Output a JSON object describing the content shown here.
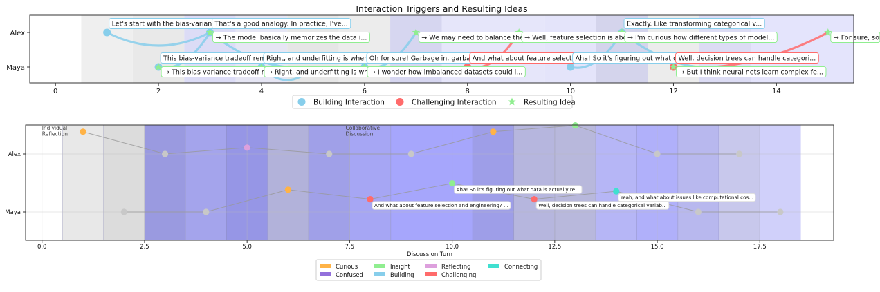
{
  "chart_data": [
    {
      "type": "scatter",
      "title": "Interaction Triggers and Resulting Ideas",
      "xlim": [
        -0.5,
        15.5
      ],
      "x_ticks": [
        0,
        2,
        4,
        6,
        8,
        10,
        12,
        14
      ],
      "y_categories": [
        "Alex",
        "Maya"
      ],
      "grid": false,
      "legend": {
        "placement": "bottom-center",
        "entries": [
          {
            "label": "Building Interaction",
            "color": "#87CEEB",
            "marker": "circle"
          },
          {
            "label": "Challenging Interaction",
            "color": "#FF6B6B",
            "marker": "circle"
          },
          {
            "label": "Resulting Idea",
            "color": "#90EE90",
            "marker": "star"
          }
        ]
      },
      "bands": [
        {
          "x0": 0.5,
          "x1": 1.5,
          "color": "#efefef"
        },
        {
          "x0": 1.5,
          "x1": 2.5,
          "color": "#e9e9e9"
        },
        {
          "x0": 2.5,
          "x1": 3.5,
          "color": "#dcdcf6"
        },
        {
          "x0": 3.5,
          "x1": 4.5,
          "color": "#e6e6f4"
        },
        {
          "x0": 4.5,
          "x1": 5.5,
          "color": "#e6e6e6"
        },
        {
          "x0": 5.5,
          "x1": 6.5,
          "color": "#ececec"
        },
        {
          "x0": 6.5,
          "x1": 7.5,
          "color": "#d6d6f0"
        },
        {
          "x0": 7.5,
          "x1": 8.5,
          "color": "#e6e6fa"
        },
        {
          "x0": 8.5,
          "x1": 9.5,
          "color": "#e6e6fa"
        },
        {
          "x0": 9.5,
          "x1": 10.5,
          "color": "#e4e4fa"
        },
        {
          "x0": 10.5,
          "x1": 11.5,
          "color": "#d4d4ec"
        },
        {
          "x0": 11.5,
          "x1": 12.5,
          "color": "#ececec"
        },
        {
          "x0": 12.5,
          "x1": 13.5,
          "color": "#dcdcf4"
        },
        {
          "x0": 13.5,
          "x1": 15.5,
          "color": "#e4e4fc"
        }
      ],
      "interactions": [
        {
          "x": 1,
          "speaker": "Alex",
          "kind": "building",
          "target_x": 3,
          "target_speaker": "Alex",
          "text": "Let's start with the bias-variance tr..."
        },
        {
          "x": 2,
          "speaker": "Maya",
          "kind": "building",
          "target_x": 3,
          "target_speaker": "Alex",
          "text": "This bias-variance tradeoff remi..."
        },
        {
          "x": 3,
          "speaker": "Alex",
          "kind": "building",
          "target_x": 5,
          "target_speaker": "Maya",
          "text": "That's a good analogy. In practice, I've..."
        },
        {
          "x": 4,
          "speaker": "Maya",
          "kind": "building",
          "target_x": 5,
          "target_speaker": "Maya",
          "text": "Right, and underfitting is when the..."
        },
        {
          "x": 6,
          "speaker": "Maya",
          "kind": "building",
          "target_x": 7,
          "target_speaker": "Alex",
          "text": "Oh for sure! Garbage in, garbage..."
        },
        {
          "x": 8,
          "speaker": "Maya",
          "kind": "challenging",
          "target_x": 9,
          "target_speaker": "Alex",
          "text": "And what about feature selection..."
        },
        {
          "x": 10,
          "speaker": "Maya",
          "kind": "building",
          "target_x": 11,
          "target_speaker": "Alex",
          "text": "Aha! So it's figuring out what data..."
        },
        {
          "x": 11,
          "speaker": "Alex",
          "kind": "building",
          "target_x": 13,
          "target_speaker": "Maya",
          "text": "Exactly. Like transforming categorical v..."
        },
        {
          "x": 12,
          "speaker": "Maya",
          "kind": "challenging",
          "target_x": 15,
          "target_speaker": "Alex",
          "text": "Well, decision trees can handle categori..."
        }
      ],
      "ideas": [
        {
          "x": 3,
          "speaker": "Alex",
          "text": "→ The model basically memorizes the data i..."
        },
        {
          "x": 2,
          "speaker": "Maya",
          "text": "→ This bias-variance tradeoff remi..."
        },
        {
          "x": 4,
          "speaker": "Maya",
          "text": "→ Right, and underfitting is when t..."
        },
        {
          "x": 7,
          "speaker": "Alex",
          "text": "→ We may need to balance the c..."
        },
        {
          "x": 6,
          "speaker": "Maya",
          "text": "→ I wonder how imbalanced datasets could l..."
        },
        {
          "x": 9,
          "speaker": "Alex",
          "text": "→ Well, feature selection is abou..."
        },
        {
          "x": 11,
          "speaker": "Alex",
          "text": "→ I'm curious how different types of model..."
        },
        {
          "x": 12,
          "speaker": "Maya",
          "text": "→ But I think neural nets learn complex fe..."
        },
        {
          "x": 15,
          "speaker": "Alex",
          "text": "→ For sure, some o..."
        }
      ]
    },
    {
      "type": "scatter",
      "title": "",
      "xlabel": "Discussion Turn",
      "xlim": [
        -0.4,
        19.3
      ],
      "x_ticks": [
        0.0,
        2.5,
        5.0,
        7.5,
        10.0,
        12.5,
        15.0,
        17.5
      ],
      "y_categories": [
        "Alex",
        "Maya"
      ],
      "grid": true,
      "phase_labels": [
        {
          "x": 0,
          "text": [
            "Individual",
            "Reflection"
          ]
        },
        {
          "x": 7.4,
          "text": [
            "Collaborative",
            "Discussion"
          ]
        }
      ],
      "legend": {
        "placement": "bottom-center",
        "entries": [
          {
            "label": "Curious",
            "color": "#FFB347"
          },
          {
            "label": "Insight",
            "color": "#90EE90"
          },
          {
            "label": "Reflecting",
            "color": "#DDA0DD"
          },
          {
            "label": "Connecting",
            "color": "#40E0D0"
          },
          {
            "label": "Confused",
            "color": "#9370DB"
          },
          {
            "label": "Building",
            "color": "#87CEEB"
          },
          {
            "label": "Challenging",
            "color": "#FF6B6B"
          }
        ]
      },
      "bands": [
        {
          "x0": 0.5,
          "x1": 1.5,
          "color": "#e8e8e8"
        },
        {
          "x0": 1.5,
          "x1": 2.5,
          "color": "#dcdcdc"
        },
        {
          "x0": 2.5,
          "x1": 3.5,
          "color": "#9a9ae0"
        },
        {
          "x0": 3.5,
          "x1": 4.5,
          "color": "#a4a4ec"
        },
        {
          "x0": 4.5,
          "x1": 5.5,
          "color": "#9696e6"
        },
        {
          "x0": 5.5,
          "x1": 6.5,
          "color": "#b2b2da"
        },
        {
          "x0": 6.5,
          "x1": 7.5,
          "color": "#a0a0e8"
        },
        {
          "x0": 7.5,
          "x1": 8.5,
          "color": "#a6a6f4"
        },
        {
          "x0": 8.5,
          "x1": 10.5,
          "color": "#a6a6fc"
        },
        {
          "x0": 10.5,
          "x1": 11.5,
          "color": "#9e9ee8"
        },
        {
          "x0": 11.5,
          "x1": 12.5,
          "color": "#b6b6de"
        },
        {
          "x0": 12.5,
          "x1": 13.5,
          "color": "#b8b8dc"
        },
        {
          "x0": 13.5,
          "x1": 14.5,
          "color": "#b6b6f6"
        },
        {
          "x0": 14.5,
          "x1": 15.5,
          "color": "#b0b0fa"
        },
        {
          "x0": 15.5,
          "x1": 16.5,
          "color": "#b8b8ee"
        },
        {
          "x0": 16.5,
          "x1": 17.5,
          "color": "#c8c8ec"
        },
        {
          "x0": 17.5,
          "x1": 18.5,
          "color": "#d0d0fa"
        }
      ],
      "alex_points": [
        {
          "x": 1,
          "y": 0.14,
          "state": "Curious"
        },
        {
          "x": 3,
          "y": 0.0,
          "state": "none"
        },
        {
          "x": 5,
          "y": 0.04,
          "state": "Reflecting"
        },
        {
          "x": 7,
          "y": 0.0,
          "state": "none"
        },
        {
          "x": 9,
          "y": 0.0,
          "state": "none"
        },
        {
          "x": 11,
          "y": 0.14,
          "state": "Curious"
        },
        {
          "x": 13,
          "y": 0.18,
          "state": "Insight"
        },
        {
          "x": 15,
          "y": 0.0,
          "state": "none"
        },
        {
          "x": 17,
          "y": 0.0,
          "state": "none"
        }
      ],
      "maya_points": [
        {
          "x": 2,
          "y": 0.0,
          "state": "none"
        },
        {
          "x": 4,
          "y": 0.0,
          "state": "none"
        },
        {
          "x": 6,
          "y": 0.14,
          "state": "Curious"
        },
        {
          "x": 8,
          "y": 0.08,
          "state": "Challenging"
        },
        {
          "x": 10,
          "y": 0.18,
          "state": "Insight"
        },
        {
          "x": 12,
          "y": 0.08,
          "state": "Challenging"
        },
        {
          "x": 14,
          "y": 0.13,
          "state": "Connecting"
        },
        {
          "x": 16,
          "y": 0.0,
          "state": "none"
        },
        {
          "x": 18,
          "y": 0.0,
          "state": "none"
        }
      ],
      "annotations": [
        {
          "x": 10,
          "speaker": "Maya",
          "text": "Aha! So it's figuring out what data is actually re..."
        },
        {
          "x": 8,
          "speaker": "Maya",
          "text": "And what about feature selection and engineering? ..."
        },
        {
          "x": 14,
          "speaker": "Maya",
          "text": "Yeah, and what about issues like computational cos..."
        },
        {
          "x": 12,
          "speaker": "Maya",
          "text": "Well, decision trees can handle categorical variab..."
        }
      ]
    }
  ]
}
